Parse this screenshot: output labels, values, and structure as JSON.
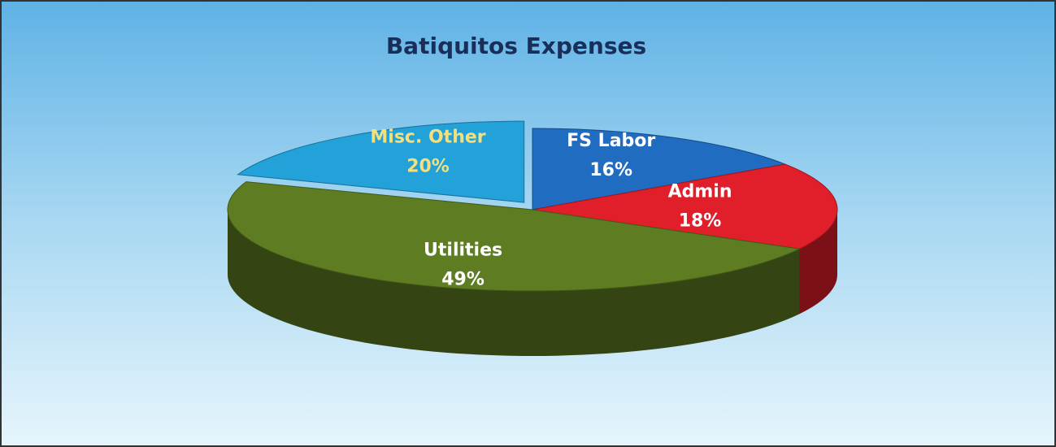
{
  "chart_data": {
    "type": "pie",
    "title": "Batiquitos Expenses",
    "categories": [
      "FS Labor",
      "Admin",
      "Utilities",
      "Misc. Other"
    ],
    "values": [
      16,
      18,
      49,
      20
    ],
    "value_labels": [
      "16%",
      "18%",
      "49%",
      "20%"
    ],
    "colors": [
      "#1f6cc0",
      "#e01f2a",
      "#5e7d22",
      "#22a2d8"
    ],
    "label_colors": [
      "#ffffff",
      "#ffffff",
      "#ffffff",
      "#f3df7e"
    ],
    "exploded": [
      false,
      false,
      false,
      true
    ]
  }
}
